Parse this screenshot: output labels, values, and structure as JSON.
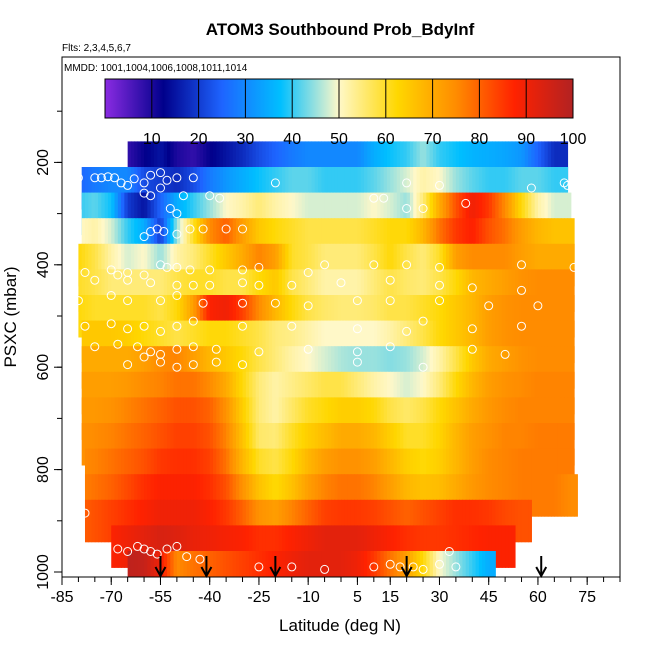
{
  "chart_data": {
    "type": "heatmap",
    "title": "ATOM3 Southbound Prob_BdyInf",
    "annotations": {
      "flights": "Flts: 2,3,4,5,6,7",
      "dates": "MMDD: 1001,1004,1006,1008,1011,1014"
    },
    "xlabel": "Latitude (deg N)",
    "ylabel": "PSXC (mbar)",
    "xlim": [
      -85,
      85
    ],
    "ylim": [
      1000,
      0
    ],
    "x_ticks": [
      -85,
      -70,
      -55,
      -40,
      -25,
      -10,
      5,
      15,
      30,
      45,
      60,
      75
    ],
    "y_ticks": [
      200,
      400,
      600,
      800,
      1000
    ],
    "colorbar": {
      "range": [
        0,
        100
      ],
      "ticks": [
        10,
        20,
        30,
        40,
        50,
        60,
        70,
        80,
        90,
        100
      ],
      "colors": [
        "#8a2be2",
        "#00008b",
        "#1e64ff",
        "#00bfff",
        "#fff8c8",
        "#ffd700",
        "#ff8c00",
        "#ff2200",
        "#b22222"
      ]
    },
    "latitudes": [
      -80,
      -75,
      -70,
      -65,
      -60,
      -55,
      -50,
      -45,
      -40,
      -35,
      -30,
      -25,
      -20,
      -15,
      -10,
      -5,
      0,
      5,
      10,
      15,
      20,
      25,
      30,
      35,
      40,
      45,
      50,
      55,
      60,
      65,
      70
    ],
    "pressure_layers": [
      {
        "p": 200,
        "lat_range": [
          -65,
          69
        ],
        "values": [
          null,
          null,
          null,
          8,
          12,
          15,
          10,
          8,
          12,
          15,
          18,
          22,
          25,
          28,
          30,
          30,
          30,
          30,
          35,
          38,
          40,
          45,
          40,
          38,
          36,
          35,
          34,
          32,
          25,
          18,
          null
        ]
      },
      {
        "p": 250,
        "lat_range": [
          -79,
          69
        ],
        "values": [
          25,
          28,
          30,
          30,
          22,
          20,
          18,
          22,
          28,
          32,
          35,
          38,
          40,
          42,
          42,
          40,
          40,
          40,
          42,
          45,
          48,
          52,
          50,
          45,
          42,
          40,
          40,
          42,
          42,
          40,
          null
        ]
      },
      {
        "p": 300,
        "lat_range": [
          -79,
          70
        ],
        "values": [
          40,
          42,
          38,
          20,
          15,
          25,
          35,
          40,
          45,
          50,
          52,
          55,
          52,
          50,
          48,
          48,
          48,
          48,
          50,
          48,
          45,
          55,
          70,
          82,
          90,
          85,
          75,
          62,
          52,
          48,
          null
        ]
      },
      {
        "p": 350,
        "lat_range": [
          -79,
          71
        ],
        "values": [
          50,
          52,
          48,
          40,
          35,
          20,
          45,
          60,
          75,
          80,
          72,
          65,
          62,
          60,
          58,
          58,
          58,
          58,
          60,
          62,
          62,
          68,
          78,
          85,
          88,
          82,
          78,
          72,
          68,
          66,
          66
        ]
      },
      {
        "p": 400,
        "lat_range": [
          -80,
          71
        ],
        "values": [
          62,
          58,
          52,
          48,
          50,
          45,
          52,
          55,
          60,
          65,
          70,
          76,
          72,
          60,
          58,
          55,
          55,
          55,
          58,
          62,
          58,
          55,
          60,
          72,
          75,
          75,
          75,
          72,
          70,
          70,
          70
        ]
      },
      {
        "p": 450,
        "lat_range": [
          -80,
          71
        ],
        "values": [
          60,
          58,
          55,
          55,
          55,
          55,
          58,
          60,
          60,
          58,
          58,
          62,
          65,
          58,
          55,
          52,
          52,
          52,
          55,
          58,
          56,
          55,
          58,
          62,
          68,
          70,
          72,
          74,
          75,
          75,
          75
        ]
      },
      {
        "p": 500,
        "lat_range": [
          -80,
          71
        ],
        "values": [
          62,
          60,
          60,
          60,
          60,
          58,
          62,
          72,
          88,
          90,
          84,
          75,
          68,
          62,
          58,
          56,
          55,
          55,
          56,
          58,
          58,
          60,
          62,
          65,
          68,
          72,
          74,
          75,
          75,
          75,
          75
        ]
      },
      {
        "p": 550,
        "lat_range": [
          -79,
          71
        ],
        "values": [
          65,
          65,
          65,
          64,
          62,
          60,
          58,
          60,
          62,
          62,
          60,
          58,
          55,
          54,
          52,
          50,
          50,
          50,
          50,
          52,
          55,
          58,
          62,
          65,
          68,
          72,
          74,
          75,
          75,
          75,
          75
        ]
      },
      {
        "p": 600,
        "lat_range": [
          -79,
          71
        ],
        "values": [
          70,
          70,
          70,
          70,
          72,
          75,
          76,
          72,
          68,
          65,
          62,
          58,
          55,
          52,
          50,
          48,
          46,
          45,
          45,
          44,
          45,
          48,
          52,
          58,
          65,
          70,
          72,
          74,
          75,
          75,
          75
        ]
      },
      {
        "p": 650,
        "lat_range": [
          -79,
          71
        ],
        "values": [
          72,
          72,
          72,
          73,
          75,
          76,
          78,
          78,
          75,
          70,
          62,
          55,
          52,
          54,
          56,
          58,
          58,
          55,
          52,
          50,
          48,
          50,
          55,
          62,
          68,
          72,
          74,
          75,
          76,
          76,
          76
        ]
      },
      {
        "p": 700,
        "lat_range": [
          -79,
          71
        ],
        "values": [
          73,
          73,
          74,
          76,
          78,
          80,
          82,
          82,
          80,
          74,
          64,
          55,
          52,
          56,
          60,
          62,
          64,
          64,
          62,
          58,
          56,
          58,
          62,
          66,
          70,
          73,
          75,
          76,
          76,
          76,
          76
        ]
      },
      {
        "p": 750,
        "lat_range": [
          -79,
          71
        ],
        "values": [
          74,
          75,
          76,
          78,
          80,
          82,
          84,
          84,
          82,
          76,
          66,
          56,
          55,
          60,
          64,
          67,
          70,
          70,
          68,
          64,
          60,
          60,
          63,
          68,
          72,
          74,
          76,
          76,
          77,
          77,
          77
        ]
      },
      {
        "p": 800,
        "lat_range": [
          -78,
          71
        ],
        "values": [
          75,
          76,
          78,
          80,
          82,
          85,
          86,
          86,
          84,
          78,
          68,
          60,
          58,
          62,
          68,
          72,
          74,
          74,
          72,
          68,
          64,
          62,
          64,
          68,
          72,
          75,
          76,
          77,
          77,
          77,
          77
        ]
      },
      {
        "p": 850,
        "lat_range": [
          -78,
          72
        ],
        "values": [
          76,
          78,
          80,
          83,
          86,
          88,
          88,
          88,
          86,
          82,
          74,
          66,
          62,
          66,
          72,
          76,
          78,
          78,
          76,
          72,
          68,
          66,
          67,
          70,
          73,
          75,
          76,
          77,
          77,
          77,
          75
        ]
      },
      {
        "p": 900,
        "lat_range": [
          -78,
          58
        ],
        "values": [
          80,
          82,
          84,
          86,
          88,
          90,
          90,
          90,
          88,
          85,
          80,
          74,
          72,
          76,
          80,
          84,
          85,
          85,
          84,
          82,
          80,
          82,
          84,
          86,
          86,
          85,
          83,
          82,
          null,
          null,
          null
        ]
      },
      {
        "p": 950,
        "lat_range": [
          -70,
          53
        ],
        "values": [
          null,
          null,
          88,
          90,
          92,
          94,
          93,
          91,
          90,
          89,
          88,
          86,
          86,
          88,
          90,
          92,
          92,
          92,
          90,
          88,
          86,
          85,
          85,
          86,
          87,
          88,
          88,
          null,
          null,
          null,
          null
        ]
      },
      {
        "p": 1000,
        "lat_range": [
          -65,
          47
        ],
        "values": [
          null,
          null,
          null,
          98,
          97,
          90,
          75,
          78,
          80,
          82,
          84,
          86,
          88,
          90,
          92,
          92,
          92,
          90,
          85,
          78,
          72,
          62,
          50,
          45,
          40,
          35,
          null,
          null,
          null,
          null,
          null
        ]
      }
    ],
    "points": [
      [
        -80,
        230
      ],
      [
        -75,
        230
      ],
      [
        -73,
        230
      ],
      [
        -71,
        228
      ],
      [
        -69,
        230
      ],
      [
        -67,
        240
      ],
      [
        -65,
        245
      ],
      [
        -63,
        232
      ],
      [
        -60,
        240
      ],
      [
        -58,
        225
      ],
      [
        -55,
        220
      ],
      [
        -53,
        235
      ],
      [
        -50,
        230
      ],
      [
        -45,
        230
      ],
      [
        -20,
        240
      ],
      [
        10,
        270
      ],
      [
        13,
        270
      ],
      [
        20,
        240
      ],
      [
        30,
        245
      ],
      [
        58,
        250
      ],
      [
        68,
        240
      ],
      [
        69,
        245
      ],
      [
        -60,
        260
      ],
      [
        -58,
        265
      ],
      [
        -55,
        250
      ],
      [
        -52,
        290
      ],
      [
        -50,
        300
      ],
      [
        -48,
        265
      ],
      [
        -40,
        265
      ],
      [
        -37,
        270
      ],
      [
        20,
        290
      ],
      [
        25,
        290
      ],
      [
        38,
        280
      ],
      [
        -60,
        345
      ],
      [
        -58,
        335
      ],
      [
        -56,
        330
      ],
      [
        -54,
        335
      ],
      [
        -50,
        340
      ],
      [
        -46,
        330
      ],
      [
        -42,
        330
      ],
      [
        -35,
        330
      ],
      [
        -30,
        330
      ],
      [
        -78,
        415
      ],
      [
        -70,
        410
      ],
      [
        -68,
        420
      ],
      [
        -65,
        415
      ],
      [
        -60,
        420
      ],
      [
        -55,
        400
      ],
      [
        -53,
        405
      ],
      [
        -50,
        405
      ],
      [
        -46,
        410
      ],
      [
        -40,
        410
      ],
      [
        -30,
        410
      ],
      [
        -25,
        405
      ],
      [
        -10,
        415
      ],
      [
        -5,
        400
      ],
      [
        10,
        400
      ],
      [
        20,
        400
      ],
      [
        30,
        405
      ],
      [
        55,
        400
      ],
      [
        71,
        405
      ],
      [
        -75,
        430
      ],
      [
        -65,
        430
      ],
      [
        -58,
        435
      ],
      [
        -50,
        440
      ],
      [
        -45,
        440
      ],
      [
        -40,
        440
      ],
      [
        -30,
        435
      ],
      [
        -25,
        440
      ],
      [
        -15,
        440
      ],
      [
        0,
        435
      ],
      [
        15,
        430
      ],
      [
        30,
        440
      ],
      [
        40,
        445
      ],
      [
        55,
        450
      ],
      [
        -80,
        470
      ],
      [
        -70,
        460
      ],
      [
        -65,
        470
      ],
      [
        -55,
        470
      ],
      [
        -50,
        460
      ],
      [
        -42,
        475
      ],
      [
        -30,
        475
      ],
      [
        -20,
        475
      ],
      [
        -10,
        480
      ],
      [
        5,
        470
      ],
      [
        15,
        470
      ],
      [
        30,
        470
      ],
      [
        45,
        480
      ],
      [
        60,
        480
      ],
      [
        -78,
        520
      ],
      [
        -70,
        515
      ],
      [
        -65,
        525
      ],
      [
        -60,
        520
      ],
      [
        -55,
        530
      ],
      [
        -50,
        520
      ],
      [
        -45,
        510
      ],
      [
        -30,
        520
      ],
      [
        -15,
        520
      ],
      [
        5,
        525
      ],
      [
        20,
        530
      ],
      [
        25,
        510
      ],
      [
        40,
        525
      ],
      [
        55,
        520
      ],
      [
        -75,
        560
      ],
      [
        -68,
        555
      ],
      [
        -62,
        560
      ],
      [
        -58,
        570
      ],
      [
        -55,
        575
      ],
      [
        -50,
        565
      ],
      [
        -45,
        560
      ],
      [
        -38,
        565
      ],
      [
        -25,
        570
      ],
      [
        -10,
        565
      ],
      [
        5,
        570
      ],
      [
        15,
        560
      ],
      [
        40,
        565
      ],
      [
        50,
        575
      ],
      [
        -65,
        595
      ],
      [
        -60,
        580
      ],
      [
        -55,
        590
      ],
      [
        -50,
        600
      ],
      [
        -45,
        595
      ],
      [
        -38,
        590
      ],
      [
        -30,
        595
      ],
      [
        5,
        590
      ],
      [
        25,
        600
      ],
      [
        -78,
        885
      ],
      [
        -68,
        955
      ],
      [
        -65,
        960
      ],
      [
        -62,
        950
      ],
      [
        -60,
        955
      ],
      [
        -58,
        960
      ],
      [
        -56,
        965
      ],
      [
        -53,
        955
      ],
      [
        -50,
        950
      ],
      [
        -47,
        970
      ],
      [
        -43,
        975
      ],
      [
        -25,
        990
      ],
      [
        -15,
        990
      ],
      [
        -5,
        995
      ],
      [
        10,
        990
      ],
      [
        15,
        985
      ],
      [
        18,
        990
      ],
      [
        22,
        990
      ],
      [
        25,
        995
      ],
      [
        30,
        985
      ],
      [
        33,
        960
      ],
      [
        35,
        990
      ]
    ],
    "arrows": [
      -55,
      -41,
      -20,
      20,
      61
    ]
  }
}
